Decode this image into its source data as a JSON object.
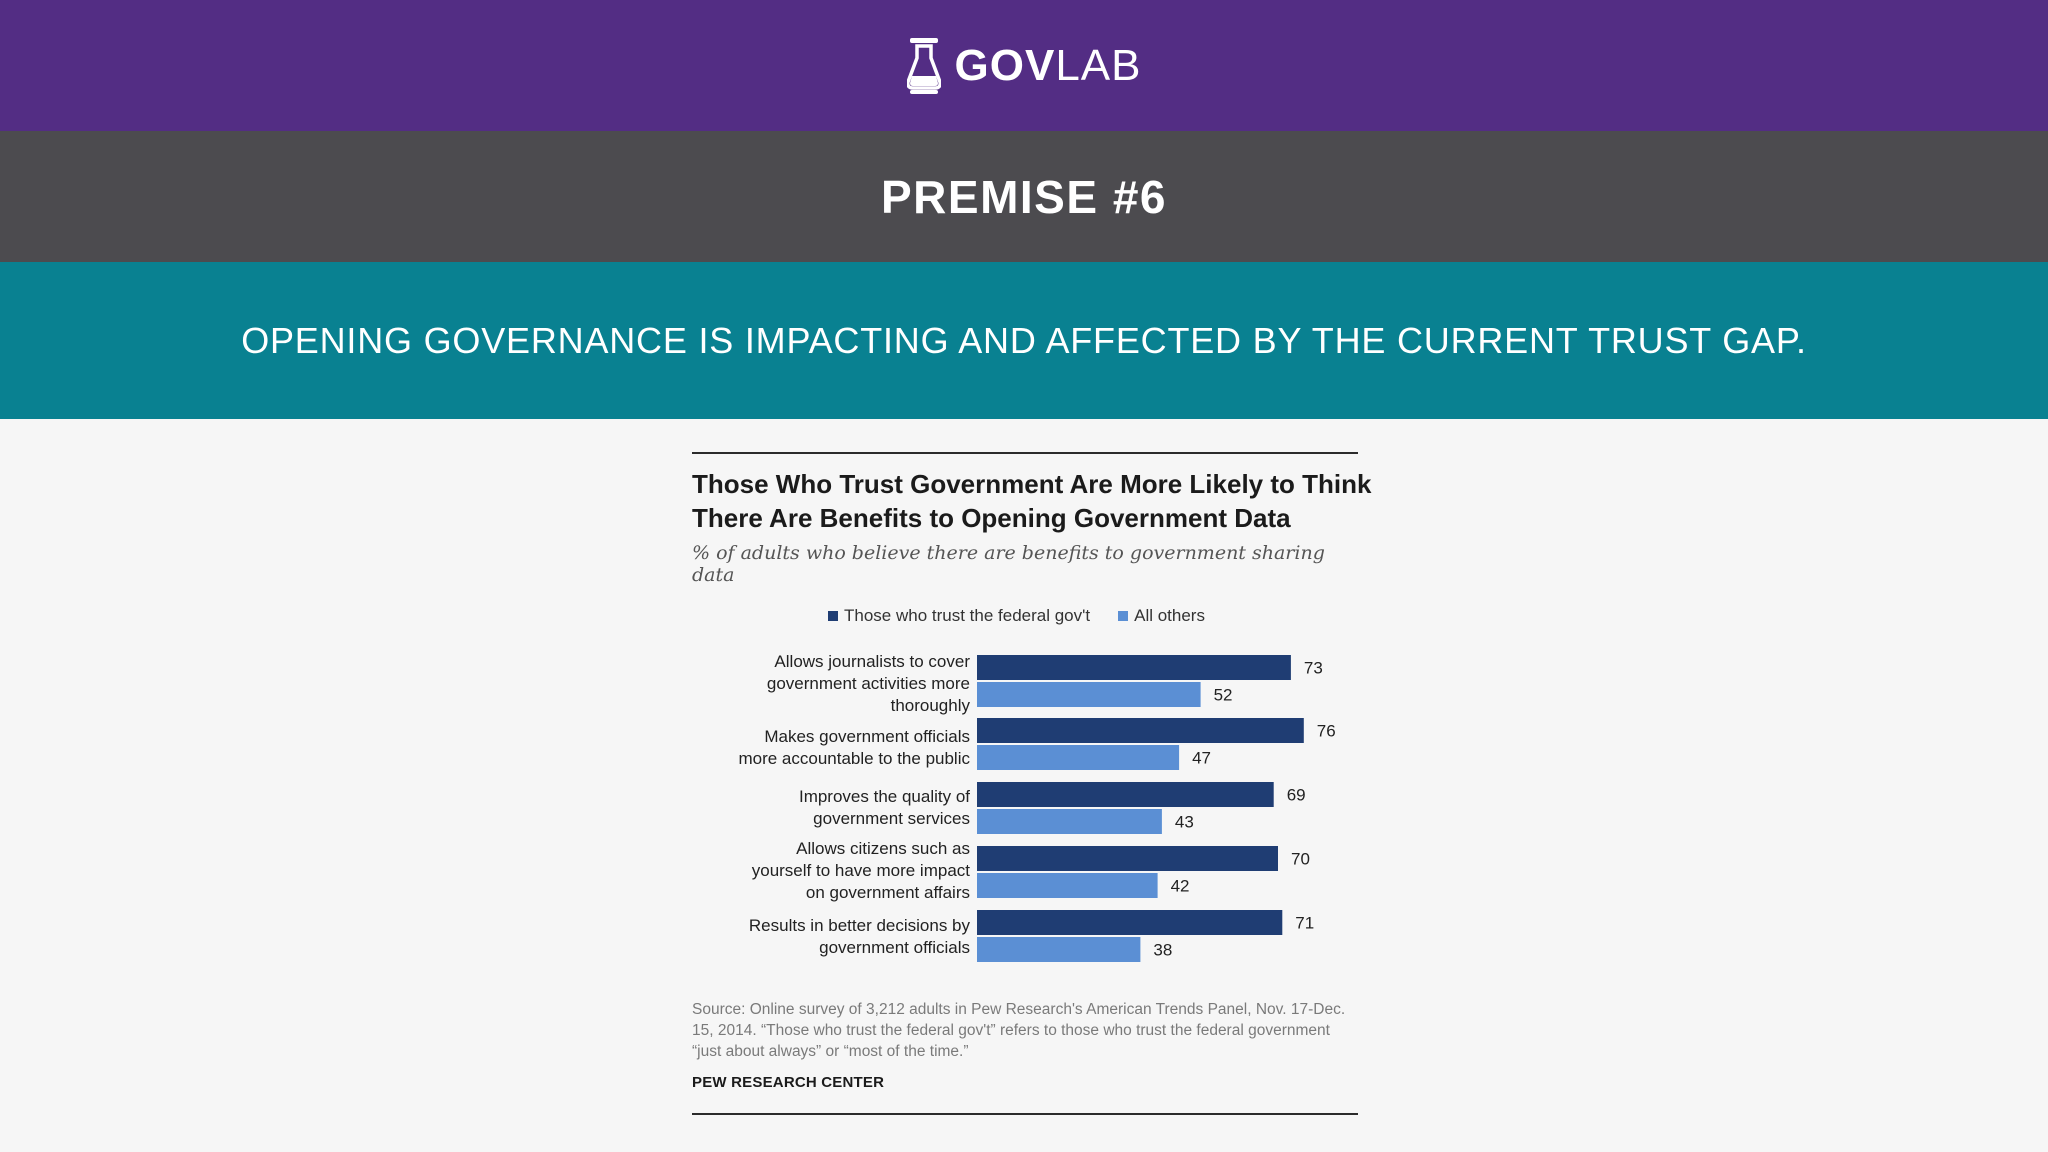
{
  "header": {
    "logo_icon": "flask-icon",
    "logo_bold": "GOV",
    "logo_light": "LAB",
    "premise": "PREMISE #6",
    "statement": "OPENING GOVERNANCE IS IMPACTING AND AFFECTED BY THE CURRENT TRUST GAP."
  },
  "colors": {
    "band_top": "#532d84",
    "band_mid": "#4c4b4f",
    "band_teal": "#098191",
    "series_trust": "#1f3d73",
    "series_others": "#5b8fd4"
  },
  "chart_data": {
    "type": "bar",
    "orientation": "horizontal",
    "title": "Those Who Trust Government Are More Likely to Think There Are Benefits to Opening Government Data",
    "title_lines": [
      "Those Who Trust Government Are More Likely to Think",
      "There Are Benefits to Opening Government Data"
    ],
    "subtitle": "% of adults who believe there are benefits to government sharing data",
    "legend_placement": "top",
    "grid": false,
    "xlim": [
      0,
      100
    ],
    "categories": [
      "Allows journalists to cover government activities more thoroughly",
      "Makes government officials more accountable to the public",
      "Improves the quality of government services",
      "Allows citizens such as yourself to have more impact on government affairs",
      "Results in better decisions by government officials"
    ],
    "category_lines": [
      [
        "Allows journalists to cover",
        "government activities more",
        "thoroughly"
      ],
      [
        "Makes government officials",
        "more accountable to the public"
      ],
      [
        "Improves the quality of",
        "government services"
      ],
      [
        "Allows citizens such as",
        "yourself to have more impact",
        "on government affairs"
      ],
      [
        "Results in better decisions by",
        "government officials"
      ]
    ],
    "series": [
      {
        "name": "Those who trust the federal gov't",
        "values": [
          73,
          76,
          69,
          70,
          71
        ]
      },
      {
        "name": "All others",
        "values": [
          52,
          47,
          43,
          42,
          38
        ]
      }
    ],
    "source": "Source: Online survey of 3,212 adults in Pew Research's American Trends Panel, Nov. 17-Dec. 15, 2014. “Those who trust the federal gov't” refers to those who trust the federal government “just about always” or “most of the time.”",
    "source_org": "PEW RESEARCH CENTER"
  }
}
